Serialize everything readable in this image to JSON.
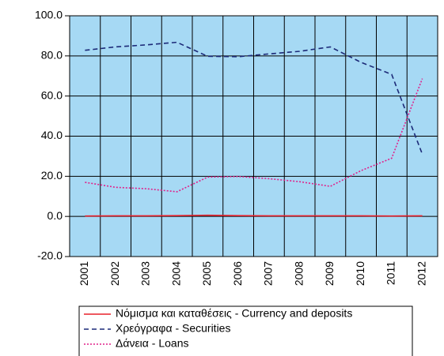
{
  "chart_data": {
    "type": "line",
    "categories": [
      "2001",
      "2002",
      "2003",
      "2004",
      "2005",
      "2006",
      "2007",
      "2008",
      "2009",
      "2010",
      "2011",
      "2012"
    ],
    "series": [
      {
        "name": "Νόμισμα και καταθέσεις - Currency and deposits",
        "color": "#e8202a",
        "style": "solid",
        "values": [
          0.2,
          0.3,
          0.3,
          0.4,
          0.6,
          0.4,
          0.3,
          0.3,
          0.3,
          0.3,
          0.2,
          0.3
        ]
      },
      {
        "name": "Χρεόγραφα - Securities",
        "color": "#1c2a78",
        "style": "dashed",
        "values": [
          82.8,
          84.5,
          85.5,
          86.8,
          79.8,
          79.6,
          81.0,
          82.3,
          84.5,
          76.8,
          70.8,
          31.0
        ]
      },
      {
        "name": "Δάνεια - Loans",
        "color": "#e0218a",
        "style": "dotted",
        "values": [
          17.0,
          14.5,
          13.8,
          12.3,
          19.6,
          19.9,
          18.8,
          17.3,
          15.0,
          22.8,
          29.0,
          68.7
        ]
      }
    ],
    "ylim": [
      -20,
      100
    ],
    "yticks": [
      {
        "value": -20,
        "label": "-20.0"
      },
      {
        "value": 0,
        "label": "0.0"
      },
      {
        "value": 20,
        "label": "20.0"
      },
      {
        "value": 40,
        "label": "40.0"
      },
      {
        "value": 60,
        "label": "60.0"
      },
      {
        "value": 80,
        "label": "80.0"
      },
      {
        "value": 100,
        "label": "100.0"
      }
    ],
    "grid": true,
    "background": "#a6d9f4",
    "legend": "bottom"
  }
}
